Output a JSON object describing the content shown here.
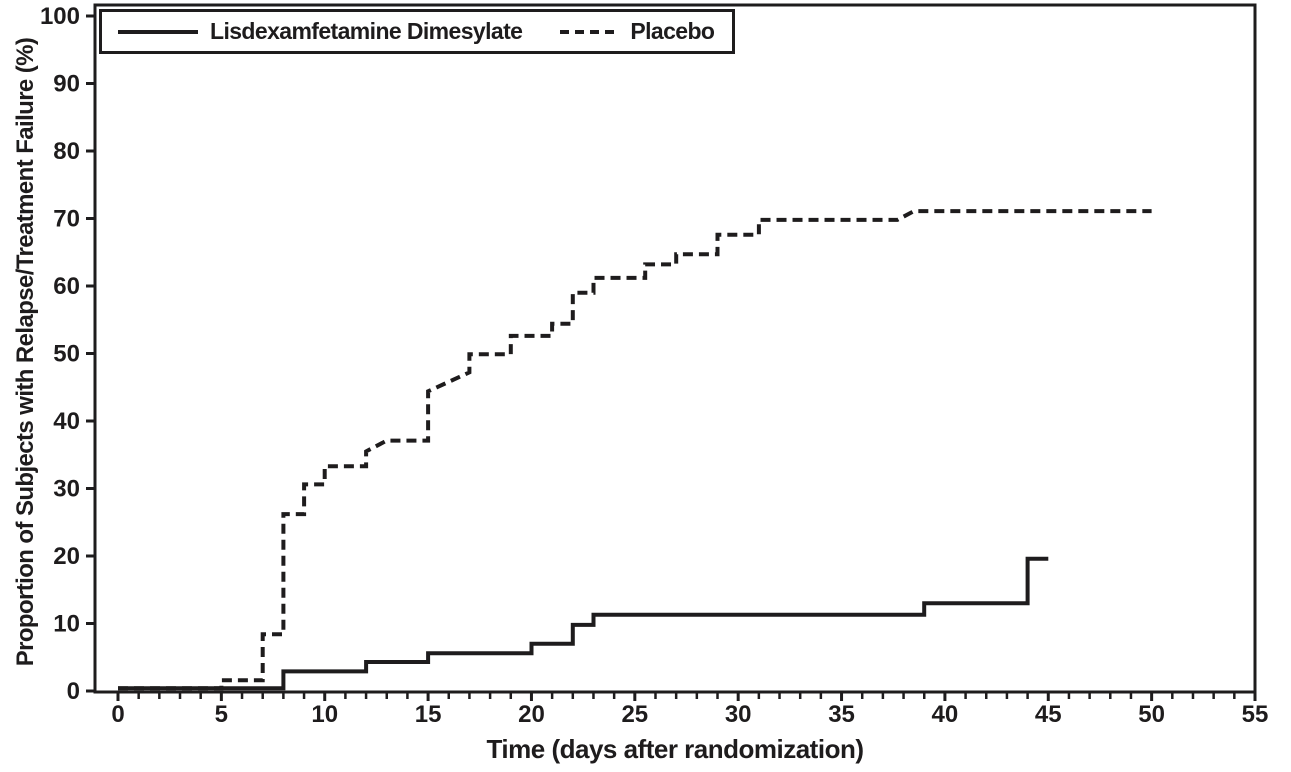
{
  "page": {
    "background": "#ffffff",
    "ink": "#1e1c1d"
  },
  "legend": {
    "position": "top-left-inside",
    "items": [
      {
        "label": "Lisdexamfetamine Dimesylate",
        "line_style": "solid"
      },
      {
        "label": "Placebo",
        "line_style": "dashed"
      }
    ]
  },
  "chart_data": {
    "type": "line",
    "subtype": "kaplan-meier-step",
    "title": "",
    "xlabel": "Time (days after randomization)",
    "ylabel": "Proportion of Subjects with Relapse/Treatment Failure (%)",
    "xlim": [
      0,
      55
    ],
    "ylim": [
      0,
      100
    ],
    "x_major_ticks": [
      0,
      5,
      10,
      15,
      20,
      25,
      30,
      35,
      40,
      45,
      50,
      55
    ],
    "x_minor_tick_interval": 1,
    "y_major_ticks": [
      0,
      10,
      20,
      30,
      40,
      50,
      60,
      70,
      80,
      90,
      100
    ],
    "grid": false,
    "frame": true,
    "legend_position": "top-left-inside",
    "series": [
      {
        "name": "Lisdexamfetamine Dimesylate",
        "style": "solid",
        "color": "#1e1c1d",
        "points": [
          [
            0,
            0.4
          ],
          [
            8,
            0.4
          ],
          [
            8,
            2.9
          ],
          [
            12,
            2.9
          ],
          [
            12,
            4.3
          ],
          [
            15,
            4.3
          ],
          [
            15,
            5.6
          ],
          [
            20,
            5.6
          ],
          [
            20,
            7.0
          ],
          [
            22,
            7.0
          ],
          [
            22,
            9.8
          ],
          [
            23,
            9.8
          ],
          [
            23,
            11.3
          ],
          [
            39,
            11.3
          ],
          [
            39,
            13.0
          ],
          [
            44,
            13.0
          ],
          [
            44,
            19.6
          ],
          [
            45,
            19.6
          ]
        ]
      },
      {
        "name": "Placebo",
        "style": "dashed",
        "color": "#1e1c1d",
        "points": [
          [
            0,
            0.4
          ],
          [
            5,
            0.4
          ],
          [
            5,
            1.6
          ],
          [
            7,
            1.6
          ],
          [
            7,
            8.4
          ],
          [
            8,
            8.4
          ],
          [
            8,
            26.2
          ],
          [
            9,
            26.2
          ],
          [
            9,
            30.6
          ],
          [
            10,
            30.6
          ],
          [
            10,
            33.3
          ],
          [
            12,
            33.3
          ],
          [
            12,
            35.5
          ],
          [
            13,
            37.1
          ],
          [
            15,
            37.1
          ],
          [
            15,
            44.4
          ],
          [
            17,
            47.2
          ],
          [
            17,
            49.9
          ],
          [
            19,
            49.9
          ],
          [
            19,
            52.6
          ],
          [
            21,
            52.6
          ],
          [
            21,
            54.4
          ],
          [
            22,
            54.4
          ],
          [
            22,
            59.0
          ],
          [
            23,
            59.0
          ],
          [
            23,
            61.2
          ],
          [
            25.5,
            61.2
          ],
          [
            25.5,
            63.2
          ],
          [
            27,
            63.2
          ],
          [
            27,
            64.7
          ],
          [
            29,
            64.7
          ],
          [
            29,
            67.6
          ],
          [
            31,
            67.6
          ],
          [
            31,
            69.8
          ],
          [
            37.7,
            69.8
          ],
          [
            38.5,
            71.1
          ],
          [
            50,
            71.1
          ]
        ]
      }
    ]
  }
}
